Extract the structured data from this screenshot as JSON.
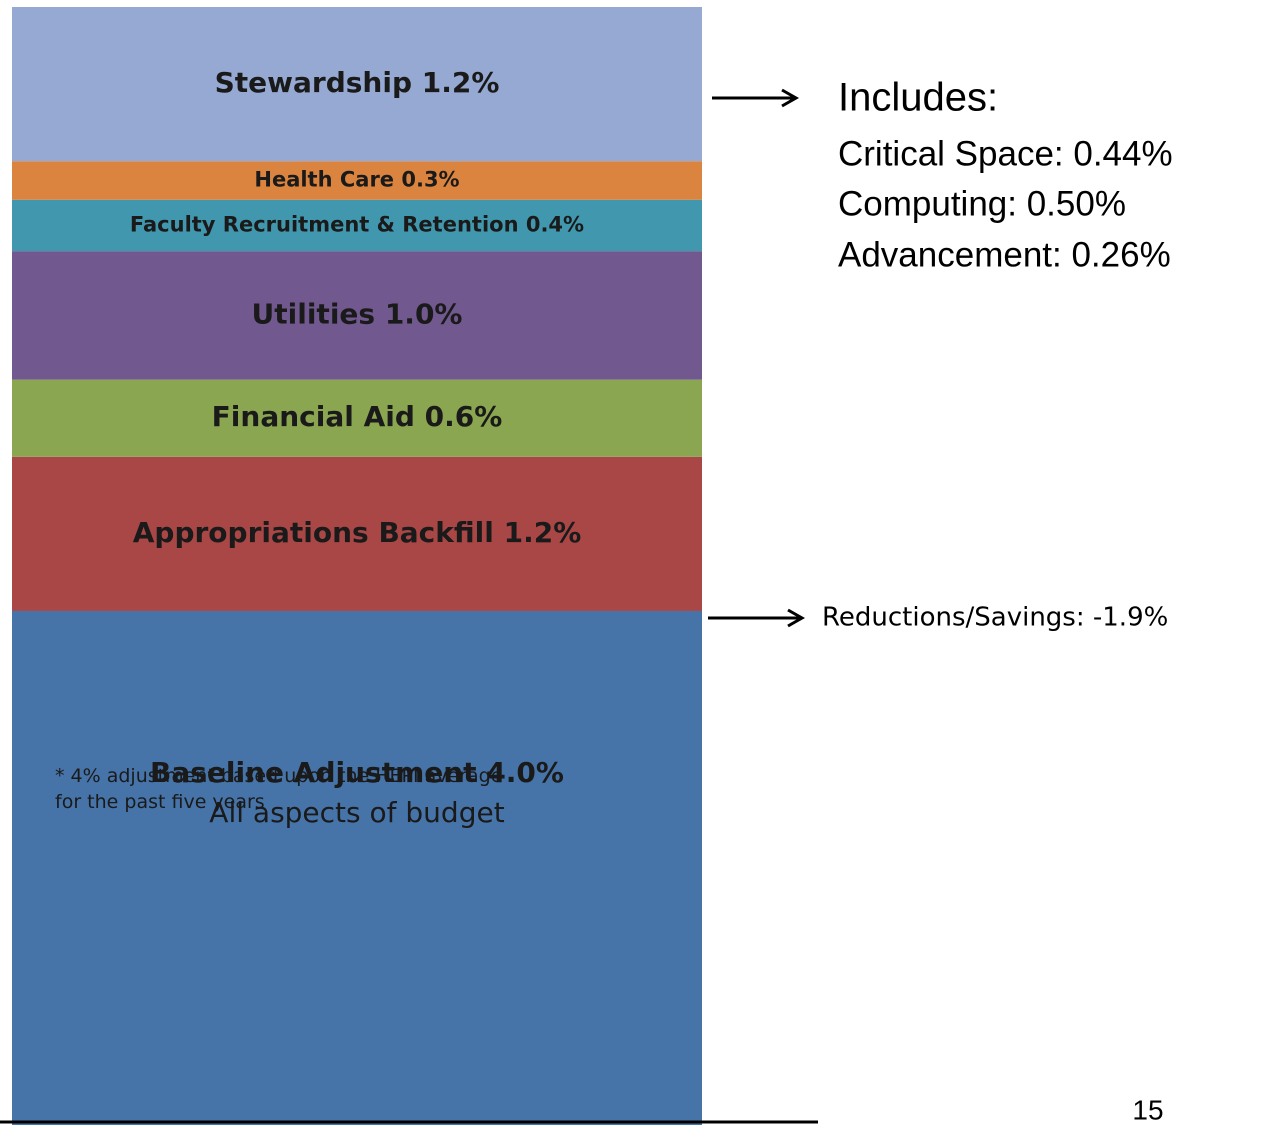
{
  "chart_data": {
    "type": "stacked_bar",
    "series": [
      {
        "name": "Baseline Adjustment",
        "color": "#4674a8",
        "values": [
          4.0
        ],
        "value_labels": [
          "4.0%"
        ],
        "subtitle": "All aspects of budget"
      },
      {
        "name": "Appropriations Backfill",
        "color": "#a94746",
        "values": [
          1.2
        ],
        "value_labels": [
          "1.2%"
        ]
      },
      {
        "name": "Financial Aid",
        "color": "#8aa650",
        "values": [
          0.6
        ],
        "value_labels": [
          "0.6%"
        ]
      },
      {
        "name": "Utilities",
        "color": "#71588f",
        "values": [
          1.0
        ],
        "value_labels": [
          "1.0%"
        ]
      },
      {
        "name": "Faculty Recruitment & Retention",
        "color": "#4197ad",
        "values": [
          0.4
        ],
        "value_labels": [
          "0.4%"
        ]
      },
      {
        "name": "Health Care",
        "color": "#db843f",
        "values": [
          0.3
        ],
        "value_labels": [
          "0.3%"
        ]
      },
      {
        "name": "Stewardship",
        "color": "#95a9d2",
        "values": [
          1.2
        ],
        "value_labels": [
          "1.2%"
        ]
      }
    ],
    "footnote": [
      "* 4% adjustment based upon the HEPI average",
      "for the past five years"
    ],
    "annotations": {
      "includes_title": "Includes:",
      "includes": [
        "Critical Space: 0.44%",
        "Computing: 0.50%",
        "Advancement: 0.26%"
      ],
      "reductions": "Reductions/Savings:  -1.9%"
    },
    "page_number": "15"
  }
}
